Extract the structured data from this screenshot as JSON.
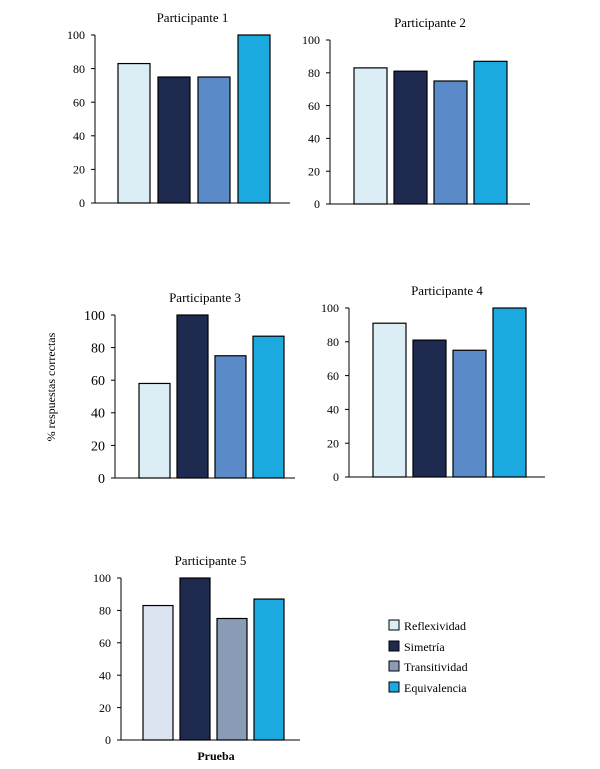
{
  "figure": {
    "ylabel": "% respuestas correctas",
    "xlabel": "Prueba",
    "legend_placement": "right of Participante 5 panel"
  },
  "legend": [
    {
      "label": "Reflexividad",
      "color": "#dbeef5"
    },
    {
      "label": "Simetría",
      "color": "#1f2a50"
    },
    {
      "label": "Transitividad",
      "color": "#8a9cb5"
    },
    {
      "label": "Equivalencia",
      "color": "#1ba9df"
    }
  ],
  "chart_data": [
    {
      "type": "bar",
      "title": "Participante 1",
      "categories": [
        "Reflexividad",
        "Simetría",
        "Transitividad",
        "Equivalencia"
      ],
      "values": [
        83,
        75,
        75,
        100
      ],
      "colors": [
        "#dbeef5",
        "#1f2a50",
        "#5a8ac8",
        "#1ba9df"
      ],
      "ylim": [
        0,
        100
      ],
      "yticks": [
        0,
        20,
        40,
        60,
        80,
        100
      ],
      "grid": false
    },
    {
      "type": "bar",
      "title": "Participante 2",
      "categories": [
        "Reflexividad",
        "Simetría",
        "Transitividad",
        "Equivalencia"
      ],
      "values": [
        83,
        81,
        75,
        87
      ],
      "colors": [
        "#dbeef5",
        "#1f2a50",
        "#5a8ac8",
        "#1ba9df"
      ],
      "ylim": [
        0,
        100
      ],
      "yticks": [
        0,
        20,
        40,
        60,
        80,
        100
      ],
      "grid": false
    },
    {
      "type": "bar",
      "title": "Participante 3",
      "categories": [
        "Reflexividad",
        "Simetría",
        "Transitividad",
        "Equivalencia"
      ],
      "values": [
        58,
        100,
        75,
        87
      ],
      "colors": [
        "#dbeef5",
        "#1f2a50",
        "#5a8ac8",
        "#1ba9df"
      ],
      "ylim": [
        0,
        100
      ],
      "yticks": [
        0,
        20,
        40,
        60,
        80,
        100
      ],
      "grid": false
    },
    {
      "type": "bar",
      "title": "Participante 4",
      "categories": [
        "Reflexividad",
        "Simetría",
        "Transitividad",
        "Equivalencia"
      ],
      "values": [
        91,
        81,
        75,
        100
      ],
      "colors": [
        "#dbeef5",
        "#1f2a50",
        "#5a8ac8",
        "#1ba9df"
      ],
      "ylim": [
        0,
        100
      ],
      "yticks": [
        0,
        20,
        40,
        60,
        80,
        100
      ],
      "grid": false
    },
    {
      "type": "bar",
      "title": "Participante 5",
      "categories": [
        "Reflexividad",
        "Simetría",
        "Transitividad",
        "Equivalencia"
      ],
      "values": [
        83,
        100,
        75,
        87
      ],
      "colors": [
        "#dce3f1",
        "#1f2a50",
        "#8a9cb5",
        "#1ba9df"
      ],
      "ylim": [
        0,
        100
      ],
      "yticks": [
        0,
        20,
        40,
        60,
        80,
        100
      ],
      "grid": false
    }
  ]
}
